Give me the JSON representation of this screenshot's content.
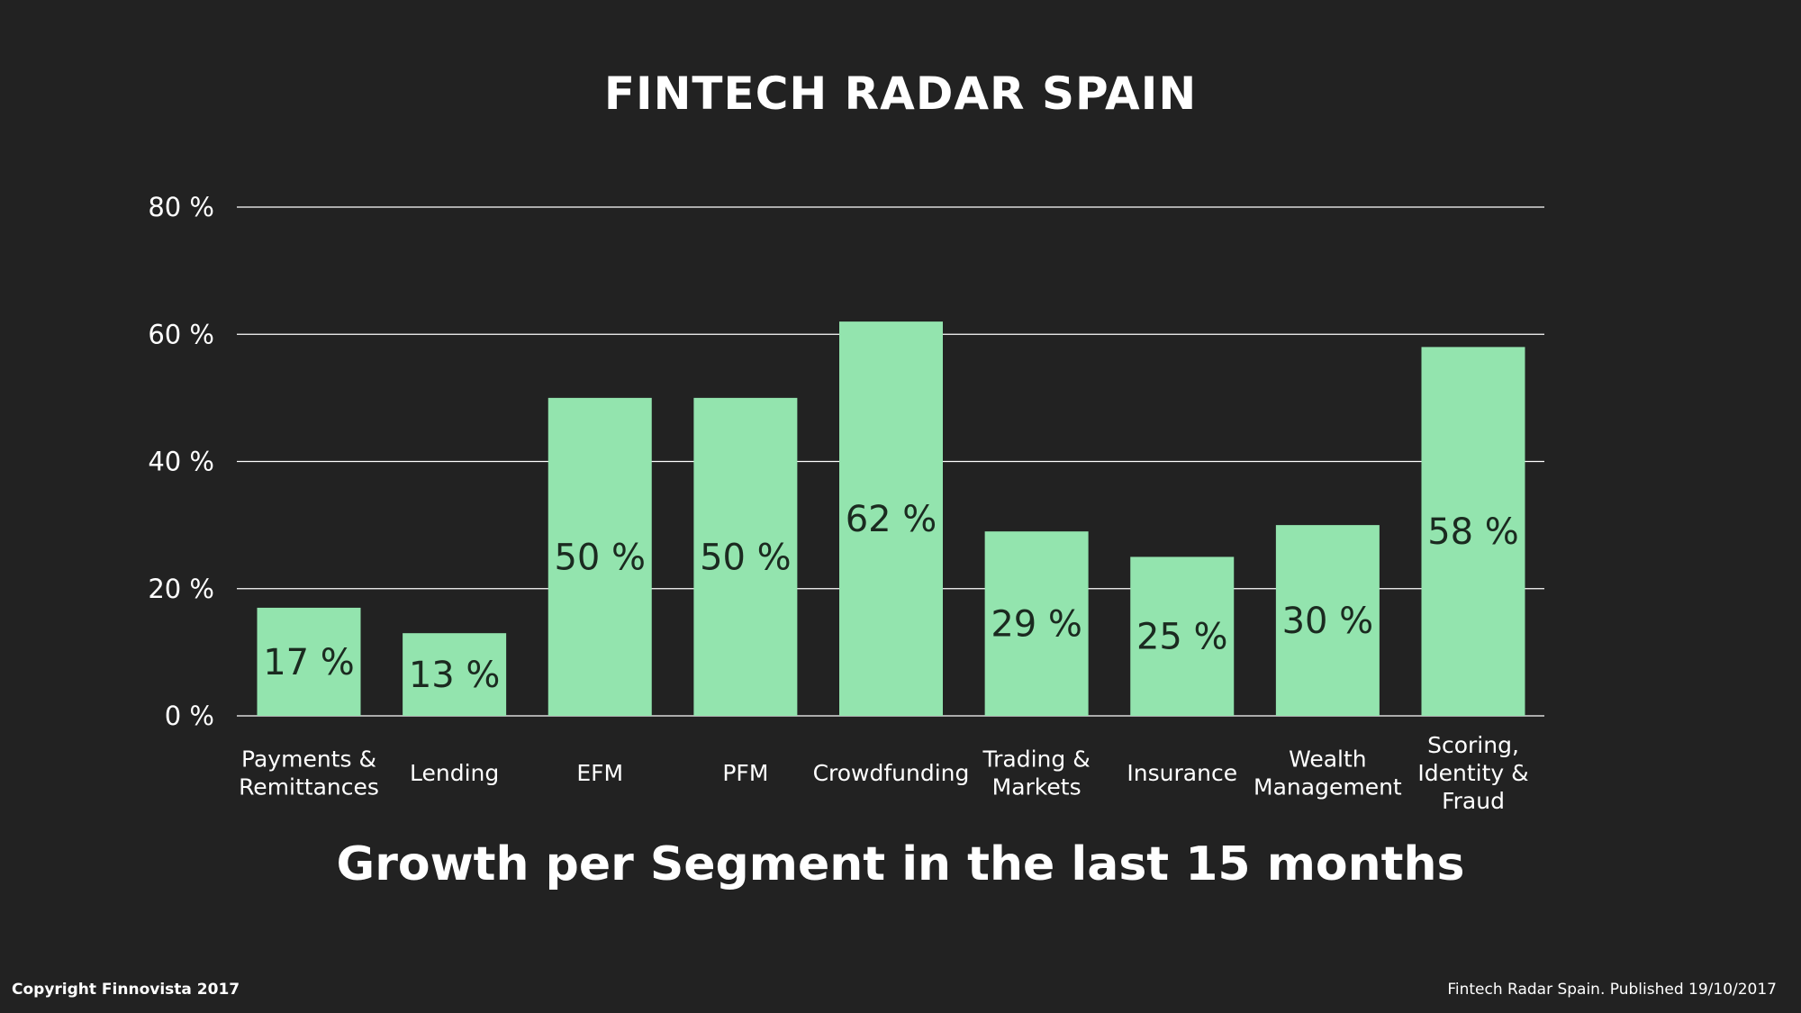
{
  "title": "FINTECH RADAR SPAIN",
  "subtitle": "Growth per Segment in the last 15 months",
  "footer": {
    "copyright": "Copyright Finnovista 2017",
    "published": "Fintech Radar Spain. Published 19/10/2017"
  },
  "colors": {
    "background": "#222222",
    "bar": "#93e4ae",
    "grid": "#ffffff",
    "text": "#ffffff",
    "data_label": "#1b2a20"
  },
  "chart_data": {
    "type": "bar",
    "title": "FINTECH RADAR SPAIN",
    "subtitle": "Growth per Segment in the last 15 months",
    "xlabel": "",
    "ylabel": "",
    "ylim": [
      0,
      80
    ],
    "yticks": [
      0,
      20,
      40,
      60,
      80
    ],
    "ytick_labels": [
      "0 %",
      "20 %",
      "40 %",
      "60 %",
      "80 %"
    ],
    "grid": true,
    "legend": "none",
    "categories": [
      [
        "Payments &",
        "Remittances"
      ],
      [
        "Lending"
      ],
      [
        "EFM"
      ],
      [
        "PFM"
      ],
      [
        "Crowdfunding"
      ],
      [
        "Trading &",
        "Markets"
      ],
      [
        "Insurance"
      ],
      [
        "Wealth",
        "Management"
      ],
      [
        "Scoring,",
        "Identity &",
        "Fraud"
      ]
    ],
    "values": [
      17,
      13,
      50,
      50,
      62,
      29,
      25,
      30,
      58
    ],
    "data_labels": [
      "17 %",
      "13 %",
      "50 %",
      "50 %",
      "62 %",
      "29 %",
      "25 %",
      "30 %",
      "58 %"
    ]
  }
}
